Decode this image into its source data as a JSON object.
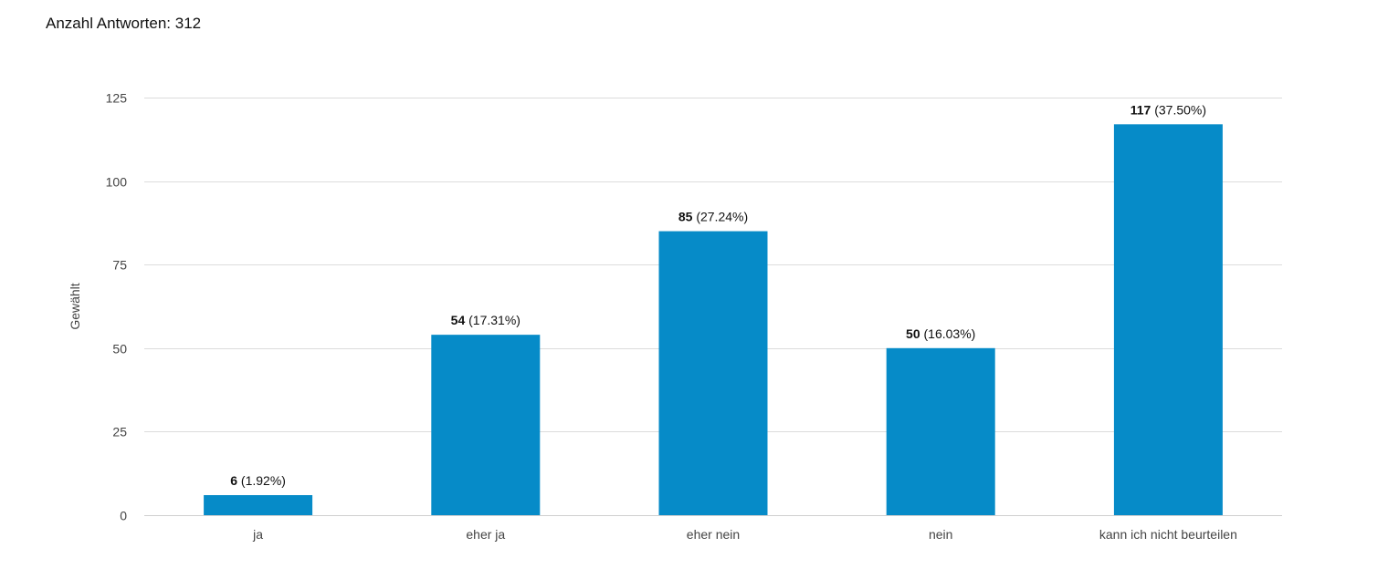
{
  "summary": {
    "label": "Anzahl Antworten:",
    "count": "312"
  },
  "colors": {
    "bar": "#068bc8",
    "grid": "#dcdcdc",
    "baseline": "#cfcfcf"
  },
  "chart_data": {
    "type": "bar",
    "title": "",
    "xlabel": "",
    "ylabel": "Gewählt",
    "ylim": [
      0,
      125
    ],
    "yticks": [
      0,
      25,
      50,
      75,
      100,
      125
    ],
    "grid": true,
    "legend": "none",
    "categories": [
      "ja",
      "eher ja",
      "eher nein",
      "nein",
      "kann ich nicht beurteilen"
    ],
    "values": [
      6,
      54,
      85,
      50,
      117
    ],
    "percent_labels": [
      "(1.92%)",
      "(17.31%)",
      "(27.24%)",
      "(16.03%)",
      "(37.50%)"
    ]
  }
}
